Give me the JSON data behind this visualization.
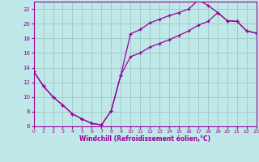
{
  "xlabel": "Windchill (Refroidissement éolien,°C)",
  "bg_color": "#c0e8e8",
  "grid_color": "#a0cccc",
  "line_color": "#990099",
  "xlim": [
    0,
    23
  ],
  "ylim": [
    6,
    23
  ],
  "xticks": [
    0,
    1,
    2,
    3,
    4,
    5,
    6,
    7,
    8,
    9,
    10,
    11,
    12,
    13,
    14,
    15,
    16,
    17,
    18,
    19,
    20,
    21,
    22,
    23
  ],
  "yticks": [
    6,
    8,
    10,
    12,
    14,
    16,
    18,
    20,
    22
  ],
  "line1_x": [
    0,
    1,
    2,
    3,
    4,
    5,
    6,
    7,
    8,
    9,
    10,
    11,
    12,
    13,
    14,
    15,
    16,
    17,
    18,
    19,
    20,
    21,
    22,
    23
  ],
  "line1_y": [
    13.5,
    11.5,
    10.0,
    8.9,
    7.7,
    7.0,
    6.4,
    6.2,
    8.1,
    13.0,
    18.6,
    19.2,
    20.1,
    20.6,
    21.1,
    21.5,
    22.0,
    23.2,
    22.5,
    21.5,
    20.4,
    20.3,
    19.0,
    18.7
  ],
  "line2_x": [
    0,
    1,
    2,
    3,
    4,
    5,
    6,
    7,
    8,
    9,
    10,
    11,
    12,
    13,
    14,
    15,
    16,
    17,
    18,
    19,
    20,
    21,
    22,
    23
  ],
  "line2_y": [
    13.5,
    11.5,
    10.0,
    8.9,
    7.7,
    7.0,
    6.4,
    6.2,
    8.1,
    13.0,
    15.5,
    16.0,
    16.8,
    17.3,
    17.8,
    18.4,
    19.0,
    19.8,
    20.3,
    21.5,
    20.4,
    20.3,
    19.0,
    18.7
  ]
}
